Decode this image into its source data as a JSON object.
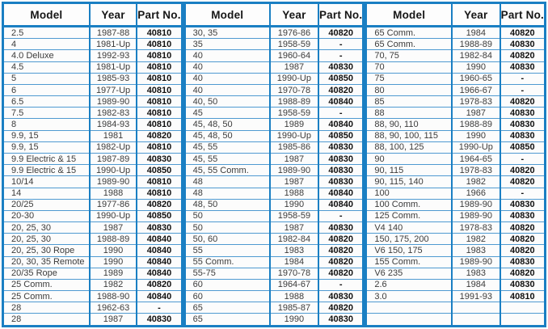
{
  "table": {
    "headers": {
      "model": "Model",
      "year": "Year",
      "part": "Part No."
    },
    "groups": [
      {
        "rows": [
          {
            "model": "2.5",
            "year": "1987-88",
            "part": "40810"
          },
          {
            "model": "4",
            "year": "1981-Up",
            "part": "40810"
          },
          {
            "model": "4.0  Deluxe",
            "year": "1992-93",
            "part": "40810"
          },
          {
            "model": "4.5",
            "year": "1981-Up",
            "part": "40810"
          },
          {
            "model": "5",
            "year": "1985-93",
            "part": "40810"
          },
          {
            "model": "6",
            "year": "1977-Up",
            "part": "40810"
          },
          {
            "model": "6.5",
            "year": "1989-90",
            "part": "40810"
          },
          {
            "model": "7.5",
            "year": "1982-83",
            "part": "40810"
          },
          {
            "model": "8",
            "year": "1984-93",
            "part": "40810"
          },
          {
            "model": "9.9, 15",
            "year": "1981",
            "part": "40820"
          },
          {
            "model": "9.9, 15",
            "year": "1982-Up",
            "part": "40810"
          },
          {
            "model": "9.9  Electric & 15",
            "year": "1987-89",
            "part": "40830"
          },
          {
            "model": "9.9  Electric & 15",
            "year": "1990-Up",
            "part": "40850"
          },
          {
            "model": "10/14",
            "year": "1989-90",
            "part": "40810"
          },
          {
            "model": "14",
            "year": "1988",
            "part": "40810"
          },
          {
            "model": "20/25",
            "year": "1977-86",
            "part": "40820"
          },
          {
            "model": "20-30",
            "year": "1990-Up",
            "part": "40850"
          },
          {
            "model": "20, 25, 30",
            "year": "1987",
            "part": "40830"
          },
          {
            "model": "20, 25, 30",
            "year": "1988-89",
            "part": "40840"
          },
          {
            "model": "20, 25, 30  Rope",
            "year": "1990",
            "part": "40840"
          },
          {
            "model": "20, 30, 35  Remote",
            "year": "1990",
            "part": "40840"
          },
          {
            "model": "20/35  Rope",
            "year": "1989",
            "part": "40840"
          },
          {
            "model": "25  Comm.",
            "year": "1982",
            "part": "40820"
          },
          {
            "model": "25  Comm.",
            "year": "1988-90",
            "part": "40840"
          },
          {
            "model": "28",
            "year": "1962-63",
            "part": "-"
          },
          {
            "model": "28",
            "year": "1987",
            "part": "40830"
          }
        ]
      },
      {
        "rows": [
          {
            "model": "30, 35",
            "year": "1976-86",
            "part": "40820"
          },
          {
            "model": "35",
            "year": "1958-59",
            "part": "-"
          },
          {
            "model": "40",
            "year": "1960-64",
            "part": "-"
          },
          {
            "model": "40",
            "year": "1987",
            "part": "40830"
          },
          {
            "model": "40",
            "year": "1990-Up",
            "part": "40850"
          },
          {
            "model": "40",
            "year": "1970-78",
            "part": "40820"
          },
          {
            "model": "40, 50",
            "year": "1988-89",
            "part": "40840"
          },
          {
            "model": "45",
            "year": "1958-59",
            "part": "-"
          },
          {
            "model": "45, 48, 50",
            "year": "1989",
            "part": "40840"
          },
          {
            "model": "45, 48, 50",
            "year": "1990-Up",
            "part": "40850"
          },
          {
            "model": "45, 55",
            "year": "1985-86",
            "part": "40830"
          },
          {
            "model": "45, 55",
            "year": "1987",
            "part": "40830"
          },
          {
            "model": "45, 55  Comm.",
            "year": "1989-90",
            "part": "40830"
          },
          {
            "model": "48",
            "year": "1987",
            "part": "40830"
          },
          {
            "model": "48",
            "year": "1988",
            "part": "40840"
          },
          {
            "model": "48, 50",
            "year": "1990",
            "part": "40840"
          },
          {
            "model": "50",
            "year": "1958-59",
            "part": "-"
          },
          {
            "model": "50",
            "year": "1987",
            "part": "40830"
          },
          {
            "model": "50, 60",
            "year": "1982-84",
            "part": "40820"
          },
          {
            "model": "55",
            "year": "1983",
            "part": "40820"
          },
          {
            "model": "55  Comm.",
            "year": "1984",
            "part": "40820"
          },
          {
            "model": "55-75",
            "year": "1970-78",
            "part": "40820"
          },
          {
            "model": "60",
            "year": "1964-67",
            "part": "-"
          },
          {
            "model": "60",
            "year": "1988",
            "part": "40830"
          },
          {
            "model": "65",
            "year": "1985-87",
            "part": "40820"
          },
          {
            "model": "65",
            "year": "1990",
            "part": "40830"
          }
        ]
      },
      {
        "rows": [
          {
            "model": "65  Comm.",
            "year": "1984",
            "part": "40820"
          },
          {
            "model": "65  Comm.",
            "year": "1988-89",
            "part": "40830"
          },
          {
            "model": "70, 75",
            "year": "1982-84",
            "part": "40820"
          },
          {
            "model": "70",
            "year": "1990",
            "part": "40830"
          },
          {
            "model": "75",
            "year": "1960-65",
            "part": "-"
          },
          {
            "model": "80",
            "year": "1966-67",
            "part": "-"
          },
          {
            "model": "85",
            "year": "1978-83",
            "part": "40820"
          },
          {
            "model": "88",
            "year": "1987",
            "part": "40830"
          },
          {
            "model": "88, 90, 110",
            "year": "1988-89",
            "part": "40830"
          },
          {
            "model": "88, 90, 100, 115",
            "year": "1990",
            "part": "40830"
          },
          {
            "model": "88, 100, 125",
            "year": "1990-Up",
            "part": "40850"
          },
          {
            "model": "90",
            "year": "1964-65",
            "part": "-"
          },
          {
            "model": "90, 115",
            "year": "1978-83",
            "part": "40820"
          },
          {
            "model": "90, 115, 140",
            "year": "1982",
            "part": "40820"
          },
          {
            "model": "100",
            "year": "1966",
            "part": "-"
          },
          {
            "model": "100  Comm.",
            "year": "1989-90",
            "part": "40830"
          },
          {
            "model": "125  Comm.",
            "year": "1989-90",
            "part": "40830"
          },
          {
            "model": "V4 140",
            "year": "1978-83",
            "part": "40820"
          },
          {
            "model": "150, 175, 200",
            "year": "1982",
            "part": "40820"
          },
          {
            "model": "V6 150, 175",
            "year": "1983",
            "part": "40820"
          },
          {
            "model": "155  Comm.",
            "year": "1989-90",
            "part": "40830"
          },
          {
            "model": "V6 235",
            "year": "1983",
            "part": "40820"
          },
          {
            "model": "2.6",
            "year": "1984",
            "part": "40830"
          },
          {
            "model": "3.0",
            "year": "1991-93",
            "part": "40810"
          },
          {
            "model": "",
            "year": "",
            "part": ""
          },
          {
            "model": "",
            "year": "",
            "part": ""
          }
        ]
      }
    ]
  },
  "colors": {
    "border_blue": "#1a7fc3",
    "row_line_blue": "#4f9ad1",
    "text_dark": "#3b3b3b",
    "part_text": "#101010"
  }
}
